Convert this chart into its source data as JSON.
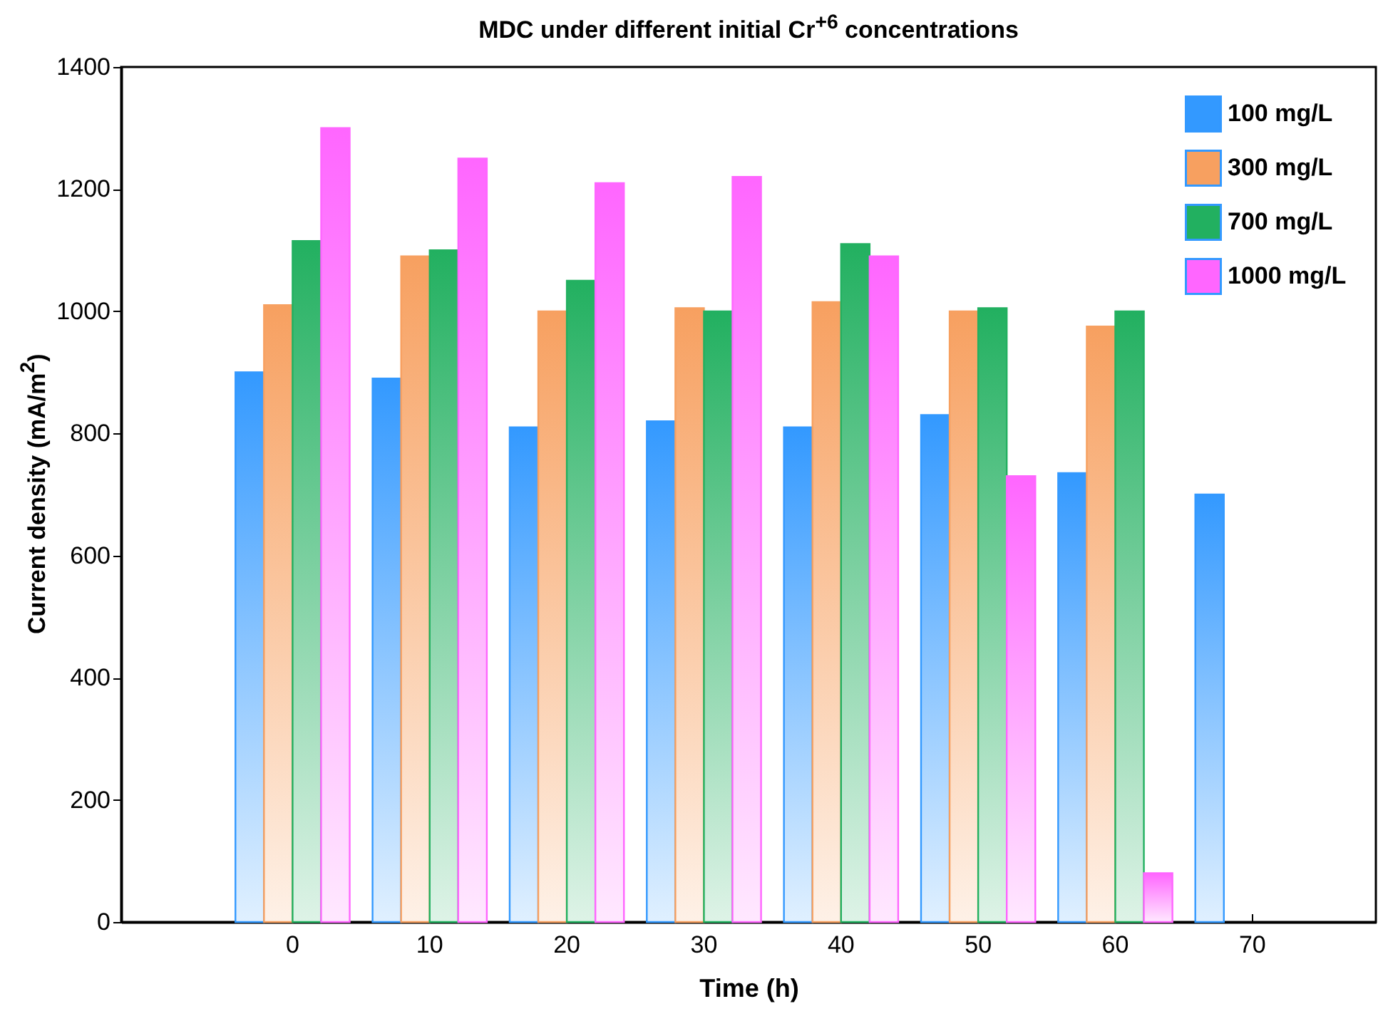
{
  "chart_data": {
    "type": "bar",
    "title": "MDC under different initial Cr$^{+6}$ concentrations",
    "xlabel": "Time (h)",
    "ylabel": "Current density (mA/m$^{2}$)",
    "categories": [
      "0",
      "10",
      "20",
      "30",
      "40",
      "50",
      "60",
      "70"
    ],
    "series": [
      {
        "name": "100 mg/L",
        "color": "#3399ff",
        "values": [
          900,
          890,
          810,
          820,
          810,
          830,
          735,
          700
        ]
      },
      {
        "name": "300 mg/L",
        "color": "#f7a060",
        "values": [
          1010,
          1090,
          1000,
          1005,
          1015,
          1000,
          975,
          null
        ]
      },
      {
        "name": "700 mg/L",
        "color": "#22b060",
        "values": [
          1115,
          1100,
          1050,
          1000,
          1110,
          1005,
          1000,
          null
        ]
      },
      {
        "name": "1000 mg/L",
        "color": "#ff66ff",
        "values": [
          1300,
          1250,
          1210,
          1220,
          1090,
          730,
          80,
          null
        ]
      }
    ],
    "ylim": [
      0,
      1400
    ],
    "yticks": [
      0,
      200,
      400,
      600,
      800,
      1000,
      1200,
      1400
    ],
    "grid": false,
    "legend": "top right"
  }
}
